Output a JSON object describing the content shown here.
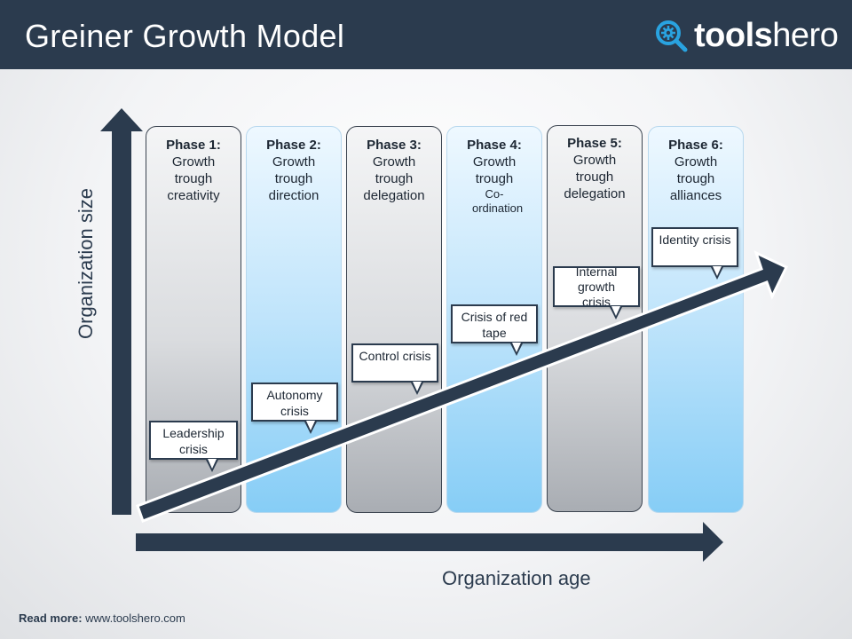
{
  "header": {
    "title": "Greiner Growth Model",
    "logo": {
      "part1": "tools",
      "part2": "hero",
      "icon": "magnifier-gear-icon"
    }
  },
  "phases": [
    {
      "phase": "Phase 1:",
      "description": "Growth trough creativity",
      "crisis": "Leadership crisis",
      "style": "gray"
    },
    {
      "phase": "Phase 2:",
      "description": "Growth trough direction",
      "crisis": "Autonomy crisis",
      "style": "blue"
    },
    {
      "phase": "Phase 3:",
      "description": "Growth trough delegation",
      "crisis": "Control crisis",
      "style": "gray"
    },
    {
      "phase": "Phase 4:",
      "description_line": "Growth trough",
      "description_small": "Co-ordination",
      "crisis": "Crisis of red tape",
      "style": "blue"
    },
    {
      "phase": "Phase 5:",
      "description": "Growth trough delegation",
      "crisis": "Internal growth crisis",
      "style": "gray"
    },
    {
      "phase": "Phase 6:",
      "description": "Growth trough alliances",
      "crisis": "Identity crisis",
      "style": "blue"
    }
  ],
  "axes": {
    "y_label": "Organization size",
    "x_label": "Organization age"
  },
  "footer": {
    "label": "Read more:",
    "url": "www.toolshero.com"
  },
  "colors": {
    "navy": "#2b3b4e",
    "blue_column": "#86cdf6",
    "gray_column": "#a9adb3"
  }
}
